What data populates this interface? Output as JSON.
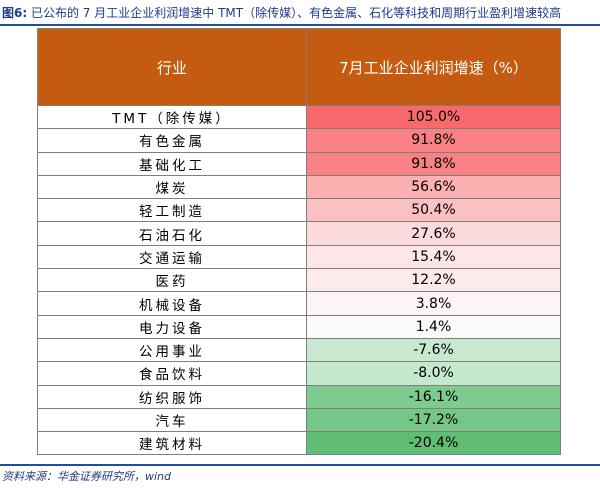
{
  "figure": {
    "label": "图6:",
    "title": "已公布的 7 月工业企业利润增速中 TMT（除传媒）、有色金属、石化等科技和周期行业盈利增速较高"
  },
  "table": {
    "headers": {
      "industry": "行业",
      "growth": "7月工业企业利润增速（%）"
    },
    "rows": [
      {
        "industry": "TMT（除传媒）",
        "value": "105.0%",
        "color": "#f8696b"
      },
      {
        "industry": "有色金属",
        "value": "91.8%",
        "color": "#f98183"
      },
      {
        "industry": "基础化工",
        "value": "91.8%",
        "color": "#f98183"
      },
      {
        "industry": "煤炭",
        "value": "56.6%",
        "color": "#fbb0b2"
      },
      {
        "industry": "轻工制造",
        "value": "50.4%",
        "color": "#fbc0c1"
      },
      {
        "industry": "石油石化",
        "value": "27.6%",
        "color": "#fcd9da"
      },
      {
        "industry": "交通运输",
        "value": "15.4%",
        "color": "#fde6e8"
      },
      {
        "industry": "医药",
        "value": "12.2%",
        "color": "#fdebec"
      },
      {
        "industry": "机械设备",
        "value": "3.8%",
        "color": "#fcf4f6"
      },
      {
        "industry": "电力设备",
        "value": "1.4%",
        "color": "#fbfafc"
      },
      {
        "industry": "公用事业",
        "value": "-7.6%",
        "color": "#c8e9d0"
      },
      {
        "industry": "食品饮料",
        "value": "-8.0%",
        "color": "#c6e8ce"
      },
      {
        "industry": "纺织服饰",
        "value": "-16.1%",
        "color": "#7ecb8f"
      },
      {
        "industry": "汽车",
        "value": "-17.2%",
        "color": "#74c786"
      },
      {
        "industry": "建筑材料",
        "value": "-20.4%",
        "color": "#5fbd74"
      }
    ]
  },
  "source": "资料来源：华金证券研究所，wind"
}
